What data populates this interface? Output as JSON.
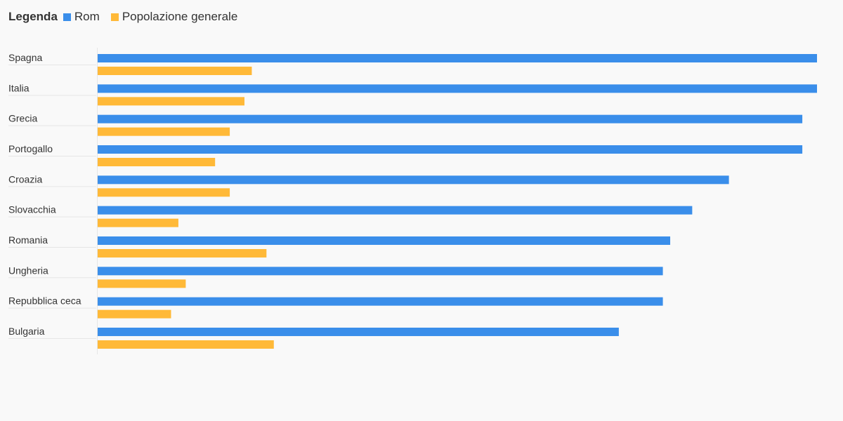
{
  "legend": {
    "title": "Legenda",
    "items": [
      {
        "label": "Rom",
        "color": "#3a8eea"
      },
      {
        "label": "Popolazione generale",
        "color": "#ffb938"
      }
    ]
  },
  "chart_data": {
    "type": "bar",
    "orientation": "horizontal",
    "title": "",
    "xlabel": "",
    "ylabel": "",
    "legend_position": "top-left",
    "grid": false,
    "xlim": [
      0,
      98
    ],
    "categories": [
      "Spagna",
      "Italia",
      "Grecia",
      "Portogallo",
      "Croazia",
      "Slovacchia",
      "Romania",
      "Ungheria",
      "Repubblica ceca",
      "Bulgaria"
    ],
    "series": [
      {
        "name": "Rom",
        "color": "#3a8eea",
        "values": [
          98,
          98,
          96,
          96,
          86,
          81,
          78,
          77,
          77,
          71
        ]
      },
      {
        "name": "Popolazione generale",
        "color": "#ffb938",
        "values": [
          21,
          20,
          18,
          16,
          18,
          11,
          23,
          12,
          10,
          24
        ]
      }
    ]
  }
}
